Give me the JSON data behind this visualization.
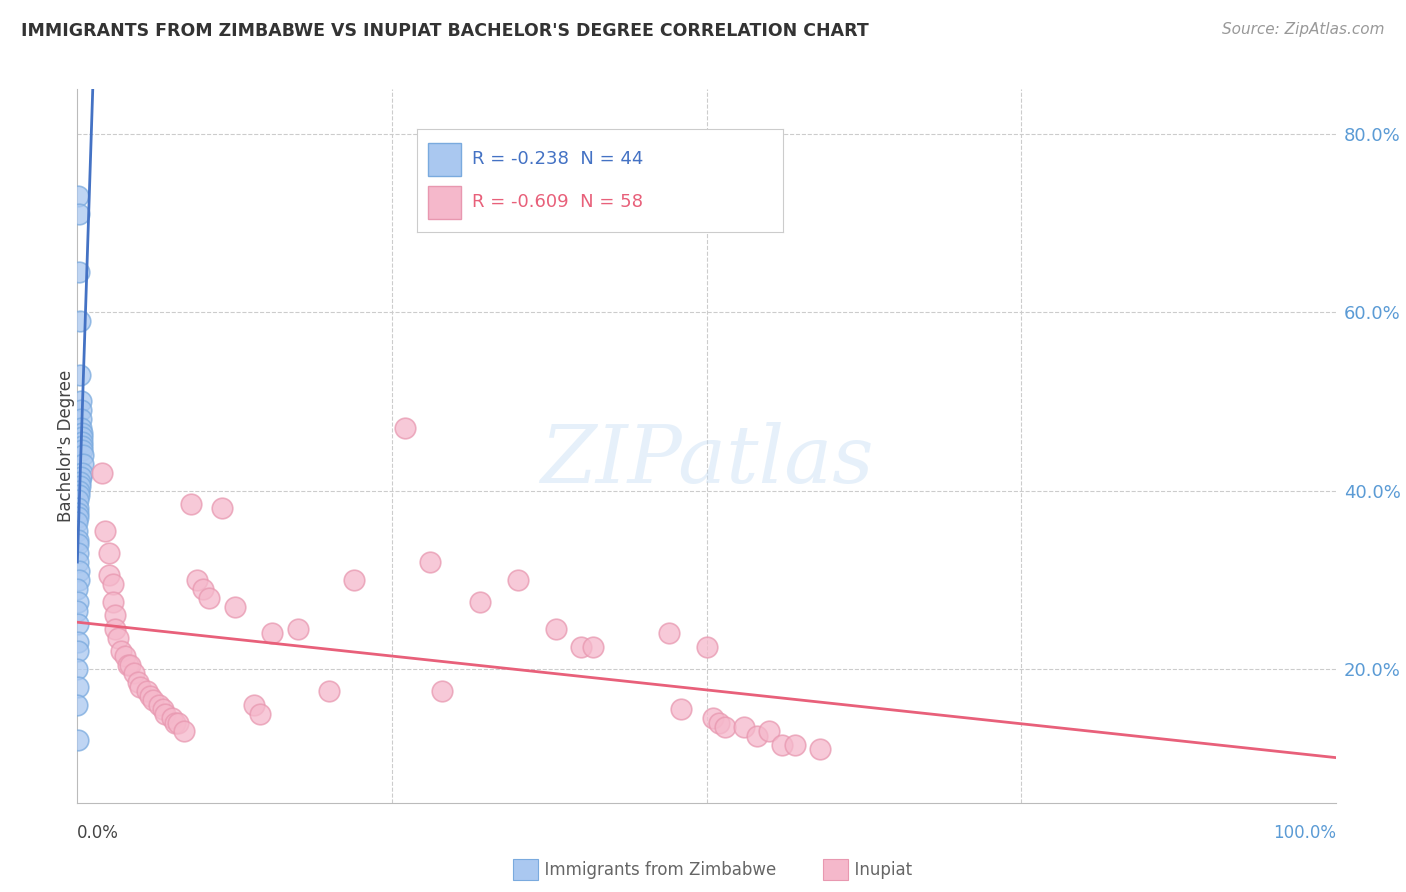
{
  "title": "IMMIGRANTS FROM ZIMBABWE VS INUPIAT BACHELOR'S DEGREE CORRELATION CHART",
  "source": "Source: ZipAtlas.com",
  "ylabel": "Bachelor's Degree",
  "right_yticks": [
    "80.0%",
    "60.0%",
    "40.0%",
    "20.0%"
  ],
  "right_ytick_vals": [
    0.8,
    0.6,
    0.4,
    0.2
  ],
  "legend_blue": "R = -0.238  N = 44",
  "legend_pink": "R = -0.609  N = 58",
  "blue_scatter": [
    [
      0.0005,
      0.73
    ],
    [
      0.001,
      0.71
    ],
    [
      0.0015,
      0.645
    ],
    [
      0.002,
      0.59
    ],
    [
      0.0025,
      0.53
    ],
    [
      0.0028,
      0.5
    ],
    [
      0.003,
      0.49
    ],
    [
      0.0032,
      0.48
    ],
    [
      0.0033,
      0.47
    ],
    [
      0.0035,
      0.465
    ],
    [
      0.0036,
      0.46
    ],
    [
      0.0038,
      0.455
    ],
    [
      0.0038,
      0.45
    ],
    [
      0.004,
      0.445
    ],
    [
      0.0042,
      0.44
    ],
    [
      0.0042,
      0.43
    ],
    [
      0.0038,
      0.42
    ],
    [
      0.003,
      0.415
    ],
    [
      0.0025,
      0.41
    ],
    [
      0.002,
      0.405
    ],
    [
      0.0015,
      0.4
    ],
    [
      0.001,
      0.395
    ],
    [
      0.0008,
      0.39
    ],
    [
      0.0005,
      0.38
    ],
    [
      0.0003,
      0.375
    ],
    [
      0.0002,
      0.37
    ],
    [
      0.0001,
      0.365
    ],
    [
      0.0001,
      0.355
    ],
    [
      0.0002,
      0.345
    ],
    [
      0.0003,
      0.34
    ],
    [
      0.0005,
      0.33
    ],
    [
      0.0008,
      0.32
    ],
    [
      0.001,
      0.31
    ],
    [
      0.0015,
      0.3
    ],
    [
      0.0001,
      0.29
    ],
    [
      0.0003,
      0.275
    ],
    [
      0.0001,
      0.265
    ],
    [
      0.0005,
      0.25
    ],
    [
      0.0002,
      0.23
    ],
    [
      0.0008,
      0.22
    ],
    [
      0.0001,
      0.2
    ],
    [
      0.0003,
      0.18
    ],
    [
      0.0001,
      0.16
    ],
    [
      0.0005,
      0.12
    ]
  ],
  "pink_scatter": [
    [
      0.02,
      0.42
    ],
    [
      0.022,
      0.355
    ],
    [
      0.025,
      0.33
    ],
    [
      0.025,
      0.305
    ],
    [
      0.028,
      0.295
    ],
    [
      0.028,
      0.275
    ],
    [
      0.03,
      0.26
    ],
    [
      0.03,
      0.245
    ],
    [
      0.032,
      0.235
    ],
    [
      0.035,
      0.22
    ],
    [
      0.038,
      0.215
    ],
    [
      0.04,
      0.205
    ],
    [
      0.042,
      0.205
    ],
    [
      0.045,
      0.195
    ],
    [
      0.048,
      0.185
    ],
    [
      0.05,
      0.18
    ],
    [
      0.055,
      0.175
    ],
    [
      0.058,
      0.17
    ],
    [
      0.06,
      0.165
    ],
    [
      0.065,
      0.16
    ],
    [
      0.068,
      0.155
    ],
    [
      0.07,
      0.15
    ],
    [
      0.075,
      0.145
    ],
    [
      0.078,
      0.14
    ],
    [
      0.08,
      0.14
    ],
    [
      0.085,
      0.13
    ],
    [
      0.09,
      0.385
    ],
    [
      0.095,
      0.3
    ],
    [
      0.1,
      0.29
    ],
    [
      0.105,
      0.28
    ],
    [
      0.115,
      0.38
    ],
    [
      0.125,
      0.27
    ],
    [
      0.14,
      0.16
    ],
    [
      0.145,
      0.15
    ],
    [
      0.155,
      0.24
    ],
    [
      0.175,
      0.245
    ],
    [
      0.2,
      0.175
    ],
    [
      0.22,
      0.3
    ],
    [
      0.26,
      0.47
    ],
    [
      0.28,
      0.32
    ],
    [
      0.29,
      0.175
    ],
    [
      0.32,
      0.275
    ],
    [
      0.35,
      0.3
    ],
    [
      0.38,
      0.245
    ],
    [
      0.4,
      0.225
    ],
    [
      0.41,
      0.225
    ],
    [
      0.47,
      0.24
    ],
    [
      0.48,
      0.155
    ],
    [
      0.5,
      0.225
    ],
    [
      0.505,
      0.145
    ],
    [
      0.51,
      0.14
    ],
    [
      0.515,
      0.135
    ],
    [
      0.53,
      0.135
    ],
    [
      0.54,
      0.125
    ],
    [
      0.55,
      0.13
    ],
    [
      0.56,
      0.115
    ],
    [
      0.57,
      0.115
    ],
    [
      0.59,
      0.11
    ]
  ],
  "blue_line_color": "#4472c4",
  "pink_line_color": "#e8607a",
  "blue_scatter_facecolor": "#aac8f0",
  "blue_scatter_edgecolor": "#7aaade",
  "pink_scatter_facecolor": "#f5b8cb",
  "pink_scatter_edgecolor": "#e898b0",
  "background_color": "#ffffff",
  "grid_color": "#cccccc",
  "xlim": [
    0.0,
    0.6
  ],
  "ylim": [
    0.05,
    0.85
  ],
  "blue_line_x": [
    0.0,
    0.016
  ],
  "pink_line_x": [
    0.0,
    0.6
  ]
}
